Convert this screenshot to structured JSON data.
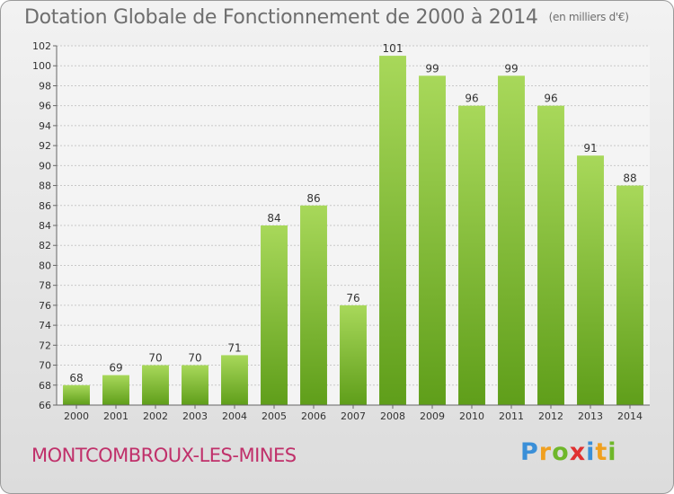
{
  "title": "Dotation Globale de Fonctionnement de 2000 à 2014",
  "unit": "(en milliers d'€)",
  "commune": "MONTCOMBROUX-LES-MINES",
  "logo": {
    "letters": [
      "P",
      "r",
      "o",
      "x",
      "i",
      "t",
      "i"
    ],
    "colors": [
      "#3a8fd8",
      "#f0a020",
      "#6fb72a",
      "#e03030",
      "#3a8fd8",
      "#f0a020",
      "#6fb72a"
    ]
  },
  "colors": {
    "bar_top": "#a8d85a",
    "bar_bottom": "#5f9e1a",
    "grid": "#c8c8c8"
  },
  "chart_data": {
    "type": "bar",
    "categories": [
      "2000",
      "2001",
      "2002",
      "2003",
      "2004",
      "2005",
      "2006",
      "2007",
      "2008",
      "2009",
      "2010",
      "2011",
      "2012",
      "2013",
      "2014"
    ],
    "values": [
      68,
      69,
      70,
      70,
      71,
      84,
      86,
      76,
      101,
      99,
      96,
      99,
      96,
      91,
      88
    ],
    "data_labels": [
      "68",
      "69",
      "70",
      "70",
      "71",
      "84",
      "86",
      "76",
      "101",
      "99",
      "96",
      "99",
      "96",
      "91",
      "88"
    ],
    "yticks": [
      "66",
      "68",
      "70",
      "72",
      "74",
      "76",
      "78",
      "80",
      "82",
      "84",
      "86",
      "88",
      "90",
      "92",
      "94",
      "96",
      "98",
      "100",
      "102"
    ],
    "ylim": [
      66,
      102
    ],
    "grid": true
  }
}
